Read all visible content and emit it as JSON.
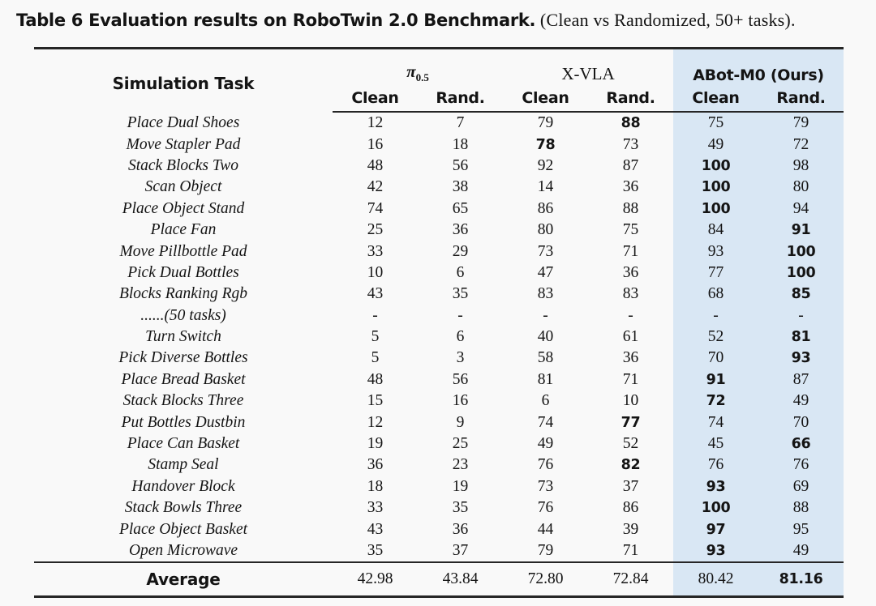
{
  "caption": {
    "bold_part": "Table 6  Evaluation results on RoboTwin 2.0 Benchmark.",
    "serif_part": " (Clean vs Randomized, 50+ tasks)."
  },
  "colors": {
    "highlight": "#d9e7f4",
    "rule": "#262626"
  },
  "table": {
    "task_header": "Simulation Task",
    "groups": {
      "pi": {
        "symbol": "π",
        "symbol_sub": "0.5"
      },
      "xvla": {
        "label": "X-VLA"
      },
      "abot": {
        "label": "ABot-M0 (Ours)"
      }
    },
    "sub_headers": [
      "Clean",
      "Rand.",
      "Clean",
      "Rand.",
      "Clean",
      "Rand."
    ],
    "rows": [
      {
        "task": "Place Dual Shoes",
        "values": [
          "12",
          "7",
          "79",
          "88",
          "75",
          "79"
        ],
        "bold": 3
      },
      {
        "task": "Move Stapler Pad",
        "values": [
          "16",
          "18",
          "78",
          "73",
          "49",
          "72"
        ],
        "bold": 2
      },
      {
        "task": "Stack Blocks Two",
        "values": [
          "48",
          "56",
          "92",
          "87",
          "100",
          "98"
        ],
        "bold": 4
      },
      {
        "task": "Scan Object",
        "values": [
          "42",
          "38",
          "14",
          "36",
          "100",
          "80"
        ],
        "bold": 4
      },
      {
        "task": "Place Object Stand",
        "values": [
          "74",
          "65",
          "86",
          "88",
          "100",
          "94"
        ],
        "bold": 4
      },
      {
        "task": "Place Fan",
        "values": [
          "25",
          "36",
          "80",
          "75",
          "84",
          "91"
        ],
        "bold": 5
      },
      {
        "task": "Move Pillbottle Pad",
        "values": [
          "33",
          "29",
          "73",
          "71",
          "93",
          "100"
        ],
        "bold": 5
      },
      {
        "task": "Pick Dual Bottles",
        "values": [
          "10",
          "6",
          "47",
          "36",
          "77",
          "100"
        ],
        "bold": 5
      },
      {
        "task": "Blocks Ranking Rgb",
        "values": [
          "43",
          "35",
          "83",
          "83",
          "68",
          "85"
        ],
        "bold": 5
      },
      {
        "task": "......(50 tasks)",
        "values": [
          "-",
          "-",
          "-",
          "-",
          "-",
          "-"
        ],
        "bold": -1
      },
      {
        "task": "Turn Switch",
        "values": [
          "5",
          "6",
          "40",
          "61",
          "52",
          "81"
        ],
        "bold": 5
      },
      {
        "task": "Pick Diverse Bottles",
        "values": [
          "5",
          "3",
          "58",
          "36",
          "70",
          "93"
        ],
        "bold": 5
      },
      {
        "task": "Place Bread Basket",
        "values": [
          "48",
          "56",
          "81",
          "71",
          "91",
          "87"
        ],
        "bold": 4
      },
      {
        "task": "Stack Blocks Three",
        "values": [
          "15",
          "16",
          "6",
          "10",
          "72",
          "49"
        ],
        "bold": 4
      },
      {
        "task": "Put Bottles Dustbin",
        "values": [
          "12",
          "9",
          "74",
          "77",
          "74",
          "70"
        ],
        "bold": 3
      },
      {
        "task": "Place Can Basket",
        "values": [
          "19",
          "25",
          "49",
          "52",
          "45",
          "66"
        ],
        "bold": 5
      },
      {
        "task": "Stamp Seal",
        "values": [
          "36",
          "23",
          "76",
          "82",
          "76",
          "76"
        ],
        "bold": 3
      },
      {
        "task": "Handover Block",
        "values": [
          "18",
          "19",
          "73",
          "37",
          "93",
          "69"
        ],
        "bold": 4
      },
      {
        "task": "Stack Bowls Three",
        "values": [
          "33",
          "35",
          "76",
          "86",
          "100",
          "88"
        ],
        "bold": 4
      },
      {
        "task": "Place Object Basket",
        "values": [
          "43",
          "36",
          "44",
          "39",
          "97",
          "95"
        ],
        "bold": 4
      },
      {
        "task": "Open Microwave",
        "values": [
          "35",
          "37",
          "79",
          "71",
          "93",
          "49"
        ],
        "bold": 4
      }
    ],
    "average": {
      "label": "Average",
      "values": [
        "42.98",
        "43.84",
        "72.80",
        "72.84",
        "80.42",
        "81.16"
      ],
      "bold": 5
    }
  }
}
